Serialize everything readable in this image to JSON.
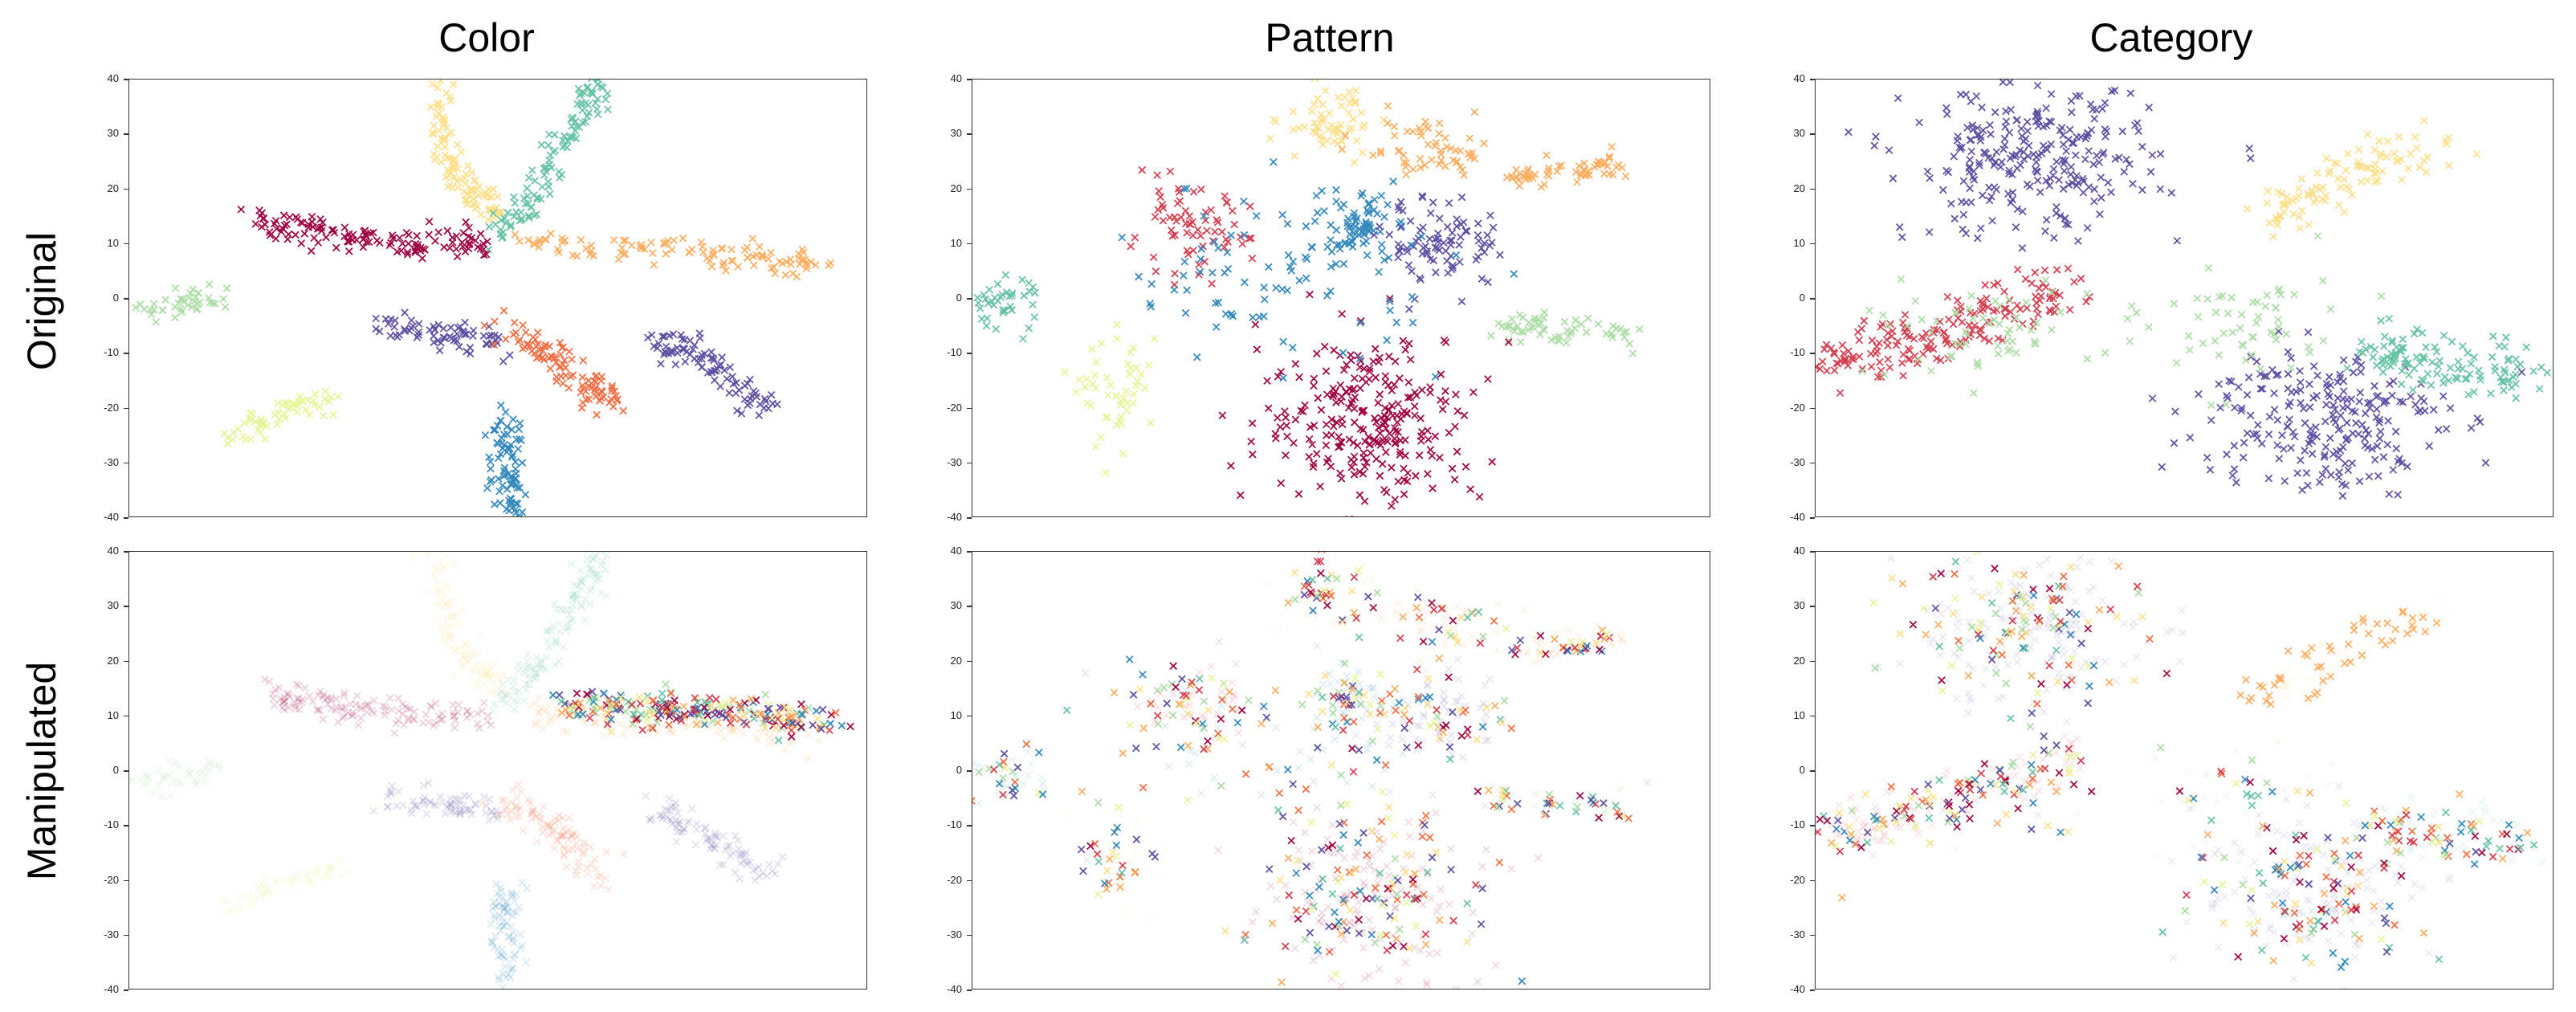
{
  "column_titles": [
    "Color",
    "Pattern",
    "Category"
  ],
  "row_labels": [
    "Original",
    "Manipulated"
  ],
  "palette": [
    "#9e0142",
    "#d53e4f",
    "#f46d43",
    "#fdae61",
    "#fee08b",
    "#e6f598",
    "#abdda4",
    "#66c2a5",
    "#3288bd",
    "#5e4fa2"
  ],
  "chart_data": [
    {
      "type": "scatter",
      "column": "Color",
      "row": "Original",
      "ylim": [
        -40,
        40
      ],
      "yticks": [
        40,
        30,
        20,
        10,
        0,
        -10,
        -20,
        -30,
        -40
      ],
      "xticks_visible": false,
      "marker": "x"
    },
    {
      "type": "scatter",
      "column": "Pattern",
      "row": "Original",
      "ylim": [
        -40,
        40
      ],
      "yticks": [
        40,
        30,
        20,
        10,
        0,
        -10,
        -20,
        -30,
        -40
      ],
      "xticks_visible": false,
      "marker": "x"
    },
    {
      "type": "scatter",
      "column": "Category",
      "row": "Original",
      "ylim": [
        -40,
        40
      ],
      "yticks": [
        40,
        30,
        20,
        10,
        0,
        -10,
        -20,
        -30,
        -40
      ],
      "xticks_visible": false,
      "marker": "x"
    },
    {
      "type": "scatter",
      "column": "Color",
      "row": "Manipulated",
      "ylim": [
        -40,
        40
      ],
      "yticks": [
        40,
        30,
        20,
        10,
        0,
        -10,
        -20,
        -30,
        -40
      ],
      "xticks_visible": false,
      "marker": "x"
    },
    {
      "type": "scatter",
      "column": "Pattern",
      "row": "Manipulated",
      "ylim": [
        -40,
        40
      ],
      "yticks": [
        40,
        30,
        20,
        10,
        0,
        -10,
        -20,
        -30,
        -40
      ],
      "xticks_visible": false,
      "marker": "x"
    },
    {
      "type": "scatter",
      "column": "Category",
      "row": "Manipulated",
      "ylim": [
        -40,
        40
      ],
      "yticks": [
        40,
        30,
        20,
        10,
        0,
        -10,
        -20,
        -30,
        -40
      ],
      "xticks_visible": false,
      "marker": "x"
    }
  ]
}
